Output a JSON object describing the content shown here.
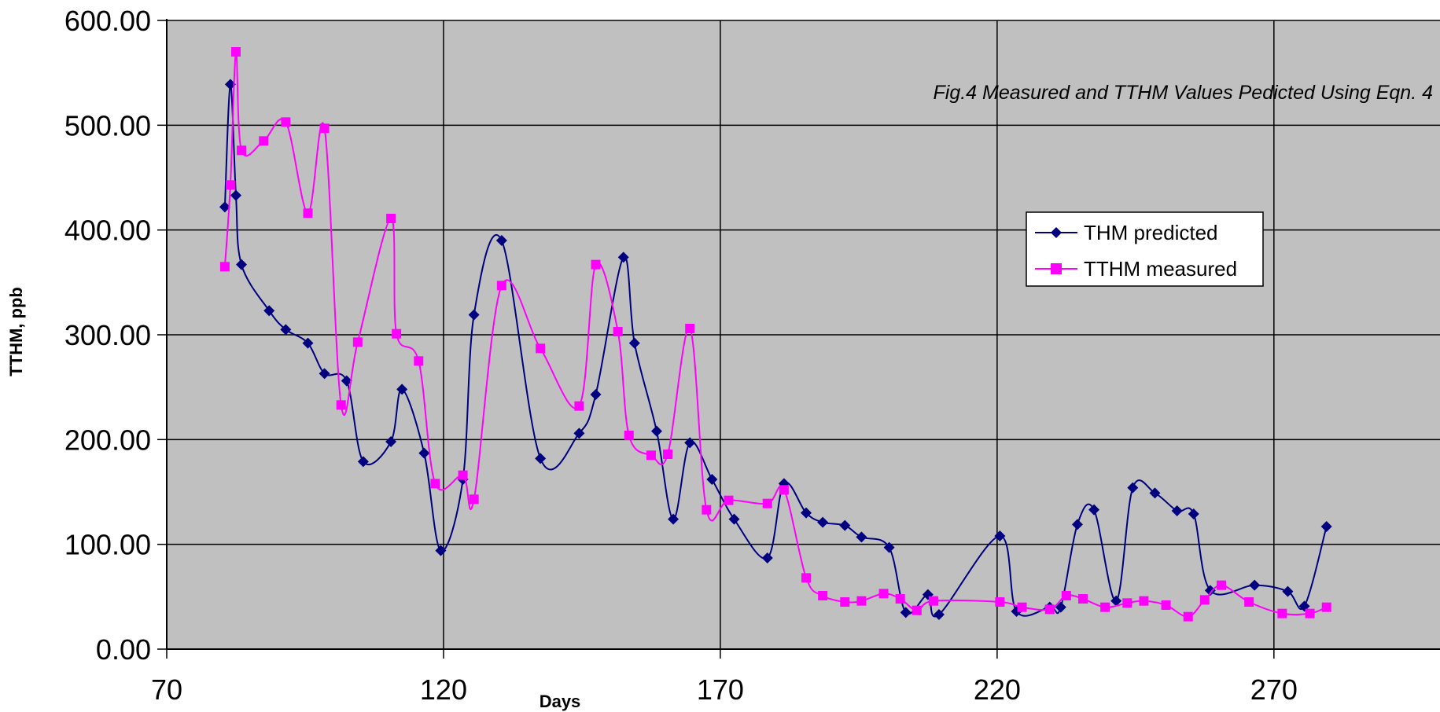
{
  "chart_data": {
    "type": "line",
    "title": "",
    "annotation": "Fig.4 Measured and TTHM Values Pedicted Using Eqn. 4",
    "xlabel": "Days",
    "ylabel": "TTHM, ppb",
    "xlim": [
      70,
      300
    ],
    "ylim": [
      0,
      600
    ],
    "xticks": [
      "70",
      "120",
      "170",
      "220",
      "270"
    ],
    "yticks": [
      "0.00",
      "100.00",
      "200.00",
      "300.00",
      "400.00",
      "500.00",
      "600.00"
    ],
    "grid": true,
    "legend_position": "right",
    "background_color": "#c0c0c0",
    "series": [
      {
        "name": "THM predicted",
        "color": "#000080",
        "marker": "diamond",
        "points": [
          [
            80.5,
            422
          ],
          [
            81.5,
            539
          ],
          [
            82.5,
            433
          ],
          [
            83.5,
            367
          ],
          [
            88.5,
            323
          ],
          [
            91.5,
            305
          ],
          [
            95.5,
            292
          ],
          [
            98.5,
            263
          ],
          [
            102.5,
            256
          ],
          [
            105.5,
            179
          ],
          [
            110.5,
            198
          ],
          [
            112.5,
            248
          ],
          [
            116.5,
            187
          ],
          [
            119.5,
            94
          ],
          [
            123.5,
            162
          ],
          [
            125.5,
            319
          ],
          [
            130.5,
            390
          ],
          [
            137.5,
            182
          ],
          [
            144.5,
            206
          ],
          [
            147.5,
            243
          ],
          [
            152.5,
            374
          ],
          [
            154.5,
            292
          ],
          [
            158.5,
            208
          ],
          [
            161.5,
            124
          ],
          [
            164.5,
            197
          ],
          [
            168.5,
            162
          ],
          [
            172.5,
            124
          ],
          [
            178.5,
            87
          ],
          [
            181.5,
            158
          ],
          [
            185.5,
            130
          ],
          [
            188.5,
            121
          ],
          [
            192.5,
            118
          ],
          [
            195.5,
            107
          ],
          [
            200.5,
            97
          ],
          [
            203.5,
            35
          ],
          [
            207.5,
            52
          ],
          [
            209.5,
            33
          ],
          [
            220.5,
            108
          ],
          [
            223.5,
            36
          ],
          [
            229.5,
            40
          ],
          [
            231.5,
            40
          ],
          [
            234.5,
            119
          ],
          [
            237.5,
            133
          ],
          [
            241.5,
            46
          ],
          [
            244.5,
            154
          ],
          [
            248.5,
            149
          ],
          [
            252.5,
            132
          ],
          [
            255.5,
            129
          ],
          [
            258.5,
            56
          ],
          [
            266.5,
            61
          ],
          [
            272.5,
            55
          ],
          [
            275.5,
            41
          ],
          [
            279.5,
            117
          ]
        ]
      },
      {
        "name": "TTHM measured",
        "color": "#ff00ff",
        "marker": "square",
        "points": [
          [
            80.5,
            365
          ],
          [
            81.5,
            443
          ],
          [
            82.5,
            570
          ],
          [
            83.5,
            476
          ],
          [
            87.5,
            485
          ],
          [
            91.5,
            503
          ],
          [
            95.5,
            416
          ],
          [
            98.5,
            497
          ],
          [
            101.5,
            233
          ],
          [
            104.5,
            293
          ],
          [
            110.5,
            411
          ],
          [
            111.5,
            301
          ],
          [
            115.5,
            275
          ],
          [
            118.5,
            158
          ],
          [
            123.5,
            166
          ],
          [
            125.5,
            143
          ],
          [
            130.5,
            347
          ],
          [
            137.5,
            287
          ],
          [
            144.5,
            232
          ],
          [
            147.5,
            367
          ],
          [
            151.5,
            303
          ],
          [
            153.5,
            204
          ],
          [
            157.5,
            185
          ],
          [
            160.5,
            186
          ],
          [
            164.5,
            306
          ],
          [
            167.5,
            133
          ],
          [
            171.5,
            142
          ],
          [
            178.5,
            139
          ],
          [
            181.5,
            152
          ],
          [
            185.5,
            68
          ],
          [
            188.5,
            51
          ],
          [
            192.5,
            45
          ],
          [
            195.5,
            46
          ],
          [
            199.5,
            53
          ],
          [
            202.5,
            48
          ],
          [
            205.5,
            37
          ],
          [
            208.5,
            46
          ],
          [
            220.5,
            45
          ],
          [
            224.5,
            40
          ],
          [
            229.5,
            38
          ],
          [
            232.5,
            51
          ],
          [
            235.5,
            48
          ],
          [
            239.5,
            40
          ],
          [
            243.5,
            44
          ],
          [
            246.5,
            46
          ],
          [
            250.5,
            42
          ],
          [
            254.5,
            31
          ],
          [
            257.5,
            47
          ],
          [
            260.5,
            61
          ],
          [
            265.5,
            45
          ],
          [
            271.5,
            34
          ],
          [
            276.5,
            34
          ],
          [
            279.5,
            40
          ]
        ]
      }
    ]
  }
}
